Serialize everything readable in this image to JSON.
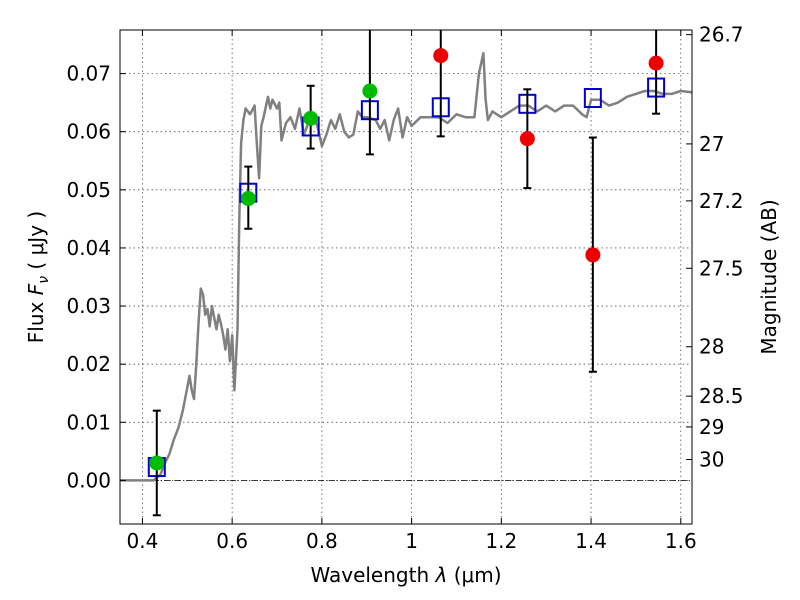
{
  "chart_data": {
    "type": "scatter",
    "xlabel_text": "Wavelength",
    "xlabel_symbol": "λ",
    "xlabel_unit": "(μm)",
    "ylabel_text": "Flux",
    "ylabel_symbol": "F",
    "ylabel_subscript": "ν",
    "ylabel_unit": "( μJy )",
    "y2label": "Magnitude (AB)",
    "xlim": [
      0.35,
      1.625
    ],
    "ylim": [
      -0.0075,
      0.0775
    ],
    "grid": true,
    "x_ticks": [
      {
        "value": 0.4,
        "label": "0.4"
      },
      {
        "value": 0.6,
        "label": "0.6"
      },
      {
        "value": 0.8,
        "label": "0.8"
      },
      {
        "value": 1.0,
        "label": "1"
      },
      {
        "value": 1.2,
        "label": "1.2"
      },
      {
        "value": 1.4,
        "label": "1.4"
      },
      {
        "value": 1.6,
        "label": "1.6"
      }
    ],
    "y_ticks": [
      {
        "value": 0.0,
        "label": "0.00"
      },
      {
        "value": 0.01,
        "label": "0.01"
      },
      {
        "value": 0.02,
        "label": "0.02"
      },
      {
        "value": 0.03,
        "label": "0.03"
      },
      {
        "value": 0.04,
        "label": "0.04"
      },
      {
        "value": 0.05,
        "label": "0.05"
      },
      {
        "value": 0.06,
        "label": "0.06"
      },
      {
        "value": 0.07,
        "label": "0.07"
      }
    ],
    "mag_ticks": [
      {
        "flux": 0.0767,
        "label": "26.7"
      },
      {
        "flux": 0.0579,
        "label": "27"
      },
      {
        "flux": 0.0481,
        "label": "27.2"
      },
      {
        "flux": 0.0365,
        "label": "27.5"
      },
      {
        "flux": 0.023,
        "label": "28"
      },
      {
        "flux": 0.0145,
        "label": "28.5"
      },
      {
        "flux": 0.0092,
        "label": "29"
      },
      {
        "flux": 0.0036,
        "label": "30"
      }
    ],
    "series": [
      {
        "kind": "line",
        "color": "#808080",
        "points": [
          [
            0.35,
            0.0
          ],
          [
            0.425,
            0.0
          ],
          [
            0.44,
            0.001
          ],
          [
            0.45,
            0.003
          ],
          [
            0.46,
            0.0045
          ],
          [
            0.47,
            0.007
          ],
          [
            0.48,
            0.009
          ],
          [
            0.49,
            0.012
          ],
          [
            0.5,
            0.016
          ],
          [
            0.505,
            0.018
          ],
          [
            0.51,
            0.0155
          ],
          [
            0.515,
            0.014
          ],
          [
            0.52,
            0.02
          ],
          [
            0.525,
            0.027
          ],
          [
            0.53,
            0.033
          ],
          [
            0.535,
            0.032
          ],
          [
            0.54,
            0.0285
          ],
          [
            0.545,
            0.0295
          ],
          [
            0.55,
            0.0265
          ],
          [
            0.555,
            0.03
          ],
          [
            0.56,
            0.028
          ],
          [
            0.565,
            0.026
          ],
          [
            0.57,
            0.0285
          ],
          [
            0.575,
            0.027
          ],
          [
            0.58,
            0.025
          ],
          [
            0.585,
            0.0225
          ],
          [
            0.59,
            0.026
          ],
          [
            0.595,
            0.0205
          ],
          [
            0.6,
            0.025
          ],
          [
            0.605,
            0.0155
          ],
          [
            0.612,
            0.026
          ],
          [
            0.616,
            0.045
          ],
          [
            0.62,
            0.058
          ],
          [
            0.625,
            0.062
          ],
          [
            0.63,
            0.064
          ],
          [
            0.64,
            0.063
          ],
          [
            0.65,
            0.0645
          ],
          [
            0.655,
            0.058
          ],
          [
            0.66,
            0.052
          ],
          [
            0.665,
            0.061
          ],
          [
            0.67,
            0.0625
          ],
          [
            0.68,
            0.066
          ],
          [
            0.685,
            0.064
          ],
          [
            0.69,
            0.0655
          ],
          [
            0.7,
            0.064
          ],
          [
            0.705,
            0.065
          ],
          [
            0.71,
            0.0585
          ],
          [
            0.72,
            0.0615
          ],
          [
            0.73,
            0.0625
          ],
          [
            0.74,
            0.0605
          ],
          [
            0.75,
            0.064
          ],
          [
            0.76,
            0.0595
          ],
          [
            0.77,
            0.0615
          ],
          [
            0.78,
            0.0625
          ],
          [
            0.79,
            0.061
          ],
          [
            0.8,
            0.0575
          ],
          [
            0.81,
            0.0595
          ],
          [
            0.82,
            0.062
          ],
          [
            0.83,
            0.0605
          ],
          [
            0.84,
            0.063
          ],
          [
            0.85,
            0.06
          ],
          [
            0.86,
            0.059
          ],
          [
            0.87,
            0.0595
          ],
          [
            0.88,
            0.0635
          ],
          [
            0.89,
            0.0625
          ],
          [
            0.9,
            0.0625
          ],
          [
            0.92,
            0.062
          ],
          [
            0.93,
            0.0605
          ],
          [
            0.94,
            0.062
          ],
          [
            0.95,
            0.0585
          ],
          [
            0.96,
            0.062
          ],
          [
            0.97,
            0.064
          ],
          [
            0.98,
            0.059
          ],
          [
            0.99,
            0.0625
          ],
          [
            1.0,
            0.061
          ],
          [
            1.02,
            0.0625
          ],
          [
            1.04,
            0.0625
          ],
          [
            1.06,
            0.0625
          ],
          [
            1.08,
            0.0615
          ],
          [
            1.1,
            0.063
          ],
          [
            1.12,
            0.0625
          ],
          [
            1.14,
            0.0625
          ],
          [
            1.15,
            0.07
          ],
          [
            1.16,
            0.0735
          ],
          [
            1.165,
            0.0655
          ],
          [
            1.17,
            0.062
          ],
          [
            1.18,
            0.0635
          ],
          [
            1.2,
            0.0625
          ],
          [
            1.22,
            0.0635
          ],
          [
            1.24,
            0.0645
          ],
          [
            1.26,
            0.0645
          ],
          [
            1.28,
            0.0635
          ],
          [
            1.3,
            0.0645
          ],
          [
            1.32,
            0.0635
          ],
          [
            1.34,
            0.0645
          ],
          [
            1.36,
            0.0645
          ],
          [
            1.38,
            0.063
          ],
          [
            1.39,
            0.0625
          ],
          [
            1.4,
            0.0655
          ],
          [
            1.42,
            0.0655
          ],
          [
            1.44,
            0.0645
          ],
          [
            1.46,
            0.065
          ],
          [
            1.48,
            0.066
          ],
          [
            1.5,
            0.0665
          ],
          [
            1.52,
            0.067
          ],
          [
            1.54,
            0.067
          ],
          [
            1.56,
            0.0665
          ],
          [
            1.58,
            0.0665
          ],
          [
            1.6,
            0.067
          ],
          [
            1.625,
            0.0668
          ]
        ]
      },
      {
        "kind": "square",
        "color": "#0000cc",
        "points": [
          [
            0.432,
            0.0023
          ],
          [
            0.636,
            0.0495
          ],
          [
            0.775,
            0.0609
          ],
          [
            0.907,
            0.0637
          ],
          [
            1.065,
            0.0642
          ],
          [
            1.258,
            0.0648
          ],
          [
            1.404,
            0.0658
          ],
          [
            1.545,
            0.0676
          ]
        ]
      },
      {
        "kind": "errorbar",
        "color": "#000000",
        "points": [
          [
            0.432,
            -0.006,
            0.012
          ],
          [
            0.636,
            0.0433,
            0.054
          ],
          [
            0.775,
            0.0571,
            0.0679
          ],
          [
            0.907,
            0.0561,
            0.079
          ],
          [
            1.065,
            0.0592,
            0.079
          ],
          [
            1.258,
            0.0503,
            0.0673
          ],
          [
            1.404,
            0.0187,
            0.059
          ],
          [
            1.545,
            0.0631,
            0.079
          ]
        ]
      },
      {
        "kind": "circle",
        "color": "#00bb00",
        "points": [
          [
            0.432,
            0.003
          ],
          [
            0.636,
            0.0485
          ],
          [
            0.775,
            0.0623
          ],
          [
            0.907,
            0.067
          ]
        ]
      },
      {
        "kind": "circle",
        "color": "#ee0000",
        "points": [
          [
            1.065,
            0.0731
          ],
          [
            1.258,
            0.0588
          ],
          [
            1.404,
            0.0388
          ],
          [
            1.545,
            0.0718
          ]
        ]
      }
    ]
  }
}
